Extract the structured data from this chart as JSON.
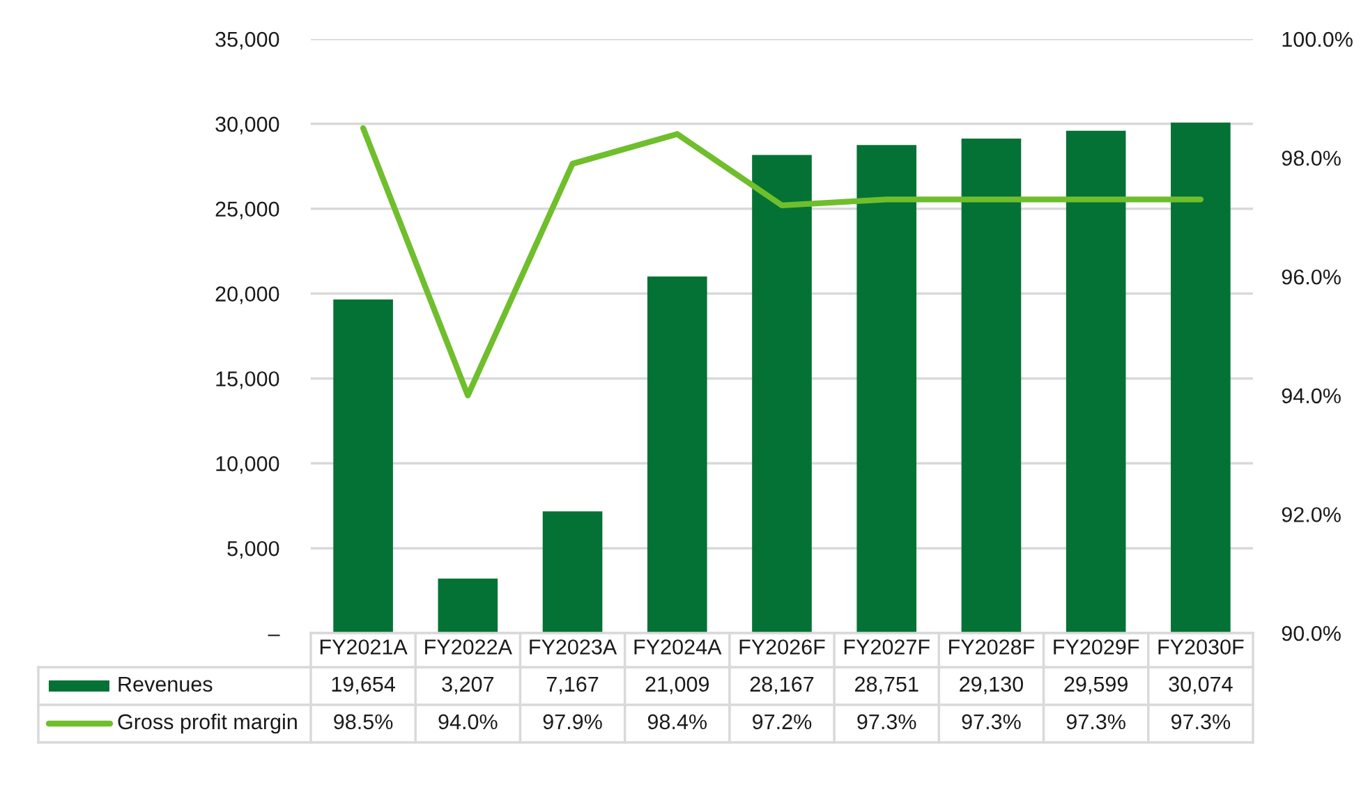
{
  "chart_data": {
    "type": "bar",
    "categories": [
      "FY2021A",
      "FY2022A",
      "FY2023A",
      "FY2024A",
      "FY2026F",
      "FY2027F",
      "FY2028F",
      "FY2029F",
      "FY2030F"
    ],
    "series": [
      {
        "name": "Revenues",
        "color": "#047235",
        "values": [
          19654,
          3207,
          7167,
          21009,
          28167,
          28751,
          29130,
          29599,
          30074
        ],
        "value_labels": [
          "19,654",
          "3,207",
          "7,167",
          "21,009",
          "28,167",
          "28,751",
          "29,130",
          "29,599",
          "30,074"
        ]
      },
      {
        "name": "Gross profit margin",
        "type": "line",
        "axis": "y2",
        "color": "#6fbe2c",
        "line_style": "solid",
        "values": [
          98.5,
          94.0,
          97.9,
          98.4,
          97.2,
          97.3,
          97.3,
          97.3,
          97.3
        ],
        "value_labels": [
          "98.5%",
          "94.0%",
          "97.9%",
          "98.4%",
          "97.2%",
          "97.3%",
          "97.3%",
          "97.3%",
          "97.3%"
        ]
      }
    ],
    "ylim": [
      0,
      35000
    ],
    "yticks": [
      {
        "value": 0,
        "label": "–"
      },
      {
        "value": 5000,
        "label": "5,000"
      },
      {
        "value": 10000,
        "label": "10,000"
      },
      {
        "value": 15000,
        "label": "15,000"
      },
      {
        "value": 20000,
        "label": "20,000"
      },
      {
        "value": 25000,
        "label": "25,000"
      },
      {
        "value": 30000,
        "label": "30,000"
      },
      {
        "value": 35000,
        "label": "35,000"
      }
    ],
    "y2lim": [
      90,
      100
    ],
    "y2ticks": [
      {
        "value": 90,
        "label": "90.0%"
      },
      {
        "value": 92,
        "label": "92.0%"
      },
      {
        "value": 94,
        "label": "94.0%"
      },
      {
        "value": 96,
        "label": "96.0%"
      },
      {
        "value": 98,
        "label": "98.0%"
      },
      {
        "value": 100,
        "label": "100.0%"
      }
    ],
    "grid": "y",
    "legend": "bottom"
  }
}
